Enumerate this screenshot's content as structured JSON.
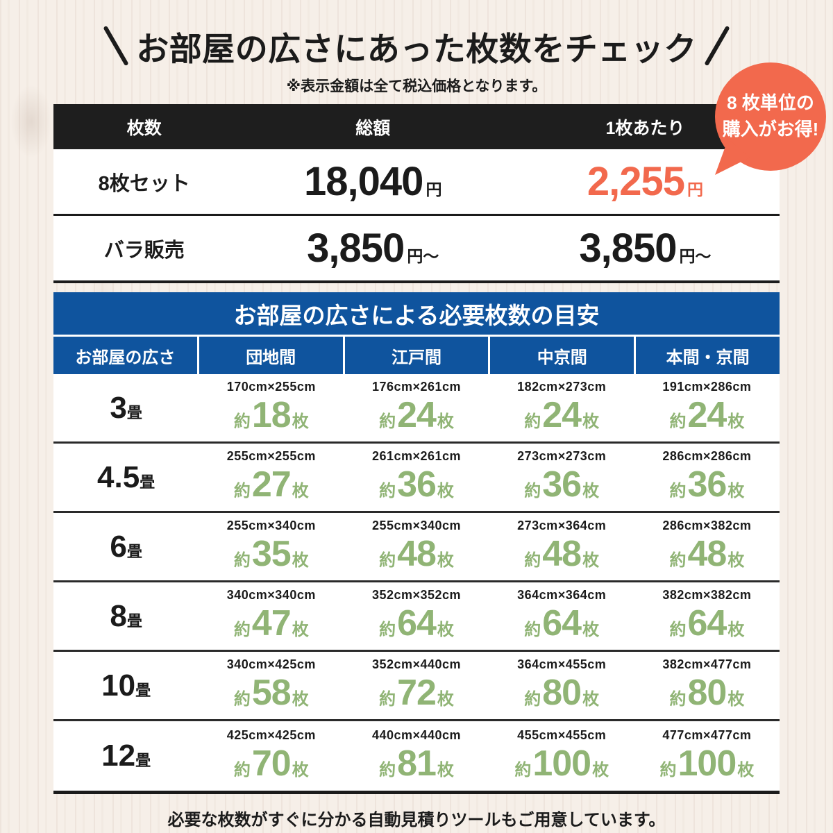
{
  "header": {
    "title": "お部屋の広さにあった枚数をチェック",
    "note": "※表示金額は全て税込価格となります。"
  },
  "badge": {
    "line1": "8 枚単位の",
    "line2": "購入がお得!"
  },
  "price_table": {
    "headers": [
      "枚数",
      "総額",
      "1枚あたり"
    ],
    "rows": [
      {
        "label": "8枚セット",
        "total": "18,040",
        "total_unit": "円",
        "per": "2,255",
        "per_unit": "円"
      },
      {
        "label": "バラ販売",
        "total": "3,850",
        "total_unit": "円〜",
        "per": "3,850",
        "per_unit": "円〜"
      }
    ]
  },
  "size_table": {
    "title": "お部屋の広さによる必要枚数の目安",
    "columns": [
      "お部屋の広さ",
      "団地間",
      "江戸間",
      "中京間",
      "本間・京間"
    ],
    "approx_prefix": "約",
    "count_unit": "枚",
    "size_unit": "畳",
    "rows": [
      {
        "size": "3",
        "cells": [
          {
            "dim": "170cm×255cm",
            "count": "18"
          },
          {
            "dim": "176cm×261cm",
            "count": "24"
          },
          {
            "dim": "182cm×273cm",
            "count": "24"
          },
          {
            "dim": "191cm×286cm",
            "count": "24"
          }
        ]
      },
      {
        "size": "4.5",
        "cells": [
          {
            "dim": "255cm×255cm",
            "count": "27"
          },
          {
            "dim": "261cm×261cm",
            "count": "36"
          },
          {
            "dim": "273cm×273cm",
            "count": "36"
          },
          {
            "dim": "286cm×286cm",
            "count": "36"
          }
        ]
      },
      {
        "size": "6",
        "cells": [
          {
            "dim": "255cm×340cm",
            "count": "35"
          },
          {
            "dim": "255cm×340cm",
            "count": "48"
          },
          {
            "dim": "273cm×364cm",
            "count": "48"
          },
          {
            "dim": "286cm×382cm",
            "count": "48"
          }
        ]
      },
      {
        "size": "8",
        "cells": [
          {
            "dim": "340cm×340cm",
            "count": "47"
          },
          {
            "dim": "352cm×352cm",
            "count": "64"
          },
          {
            "dim": "364cm×364cm",
            "count": "64"
          },
          {
            "dim": "382cm×382cm",
            "count": "64"
          }
        ]
      },
      {
        "size": "10",
        "cells": [
          {
            "dim": "340cm×425cm",
            "count": "58"
          },
          {
            "dim": "352cm×440cm",
            "count": "72"
          },
          {
            "dim": "364cm×455cm",
            "count": "80"
          },
          {
            "dim": "382cm×477cm",
            "count": "80"
          }
        ]
      },
      {
        "size": "12",
        "cells": [
          {
            "dim": "425cm×425cm",
            "count": "70"
          },
          {
            "dim": "440cm×440cm",
            "count": "81"
          },
          {
            "dim": "455cm×455cm",
            "count": "100"
          },
          {
            "dim": "477cm×477cm",
            "count": "100"
          }
        ]
      }
    ]
  },
  "footer": {
    "text": "必要な枚数がすぐに分かる自動見積りツールもご用意しています。"
  },
  "colors": {
    "accent_orange": "#F2694D",
    "highlight_green": "#90B475",
    "table_blue": "#0F549E",
    "dark": "#1B1B1B"
  }
}
